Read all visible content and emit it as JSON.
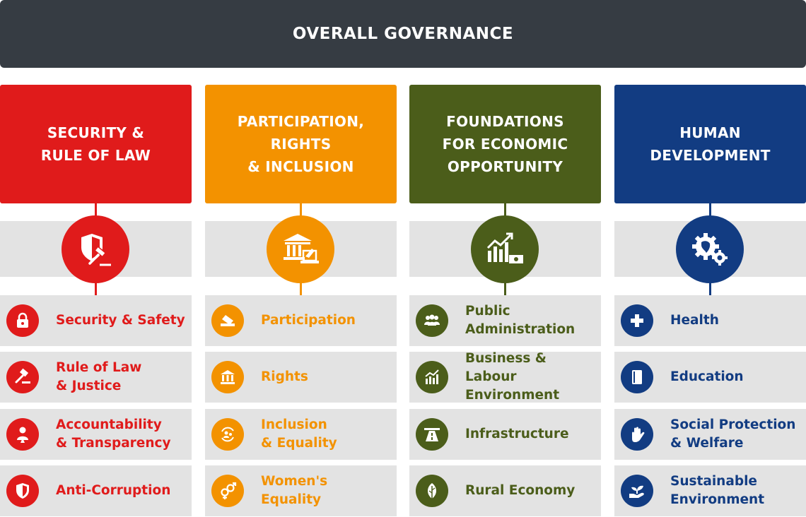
{
  "banner": {
    "title": "OVERALL GOVERNANCE"
  },
  "columns": [
    {
      "title": "SECURITY &\nRULE OF LAW",
      "color": "#e01b1b",
      "icon": "shield-gavel-icon",
      "items": [
        {
          "label": "Security & Safety",
          "icon": "padlock-icon"
        },
        {
          "label": "Rule of Law\n& Justice",
          "icon": "gavel-icon"
        },
        {
          "label": "Accountability\n& Transparency",
          "icon": "person-icon"
        },
        {
          "label": "Anti-Corruption",
          "icon": "shield-icon"
        }
      ]
    },
    {
      "title": "PARTICIPATION,\nRIGHTS\n& INCLUSION",
      "color": "#f39200",
      "icon": "institution-ballot-icon",
      "items": [
        {
          "label": "Participation",
          "icon": "ballot-icon"
        },
        {
          "label": "Rights",
          "icon": "institution-icon"
        },
        {
          "label": "Inclusion\n& Equality",
          "icon": "people-cycle-icon"
        },
        {
          "label": "Women's\nEquality",
          "icon": "gender-icon"
        }
      ]
    },
    {
      "title": "FOUNDATIONS\nFOR ECONOMIC\nOPPORTUNITY",
      "color": "#4b5d1a",
      "icon": "growth-chart-money-icon",
      "items": [
        {
          "label": "Public\nAdministration",
          "icon": "group-icon"
        },
        {
          "label": "Business & Labour\nEnvironment",
          "icon": "bar-chart-icon"
        },
        {
          "label": "Infrastructure",
          "icon": "road-icon"
        },
        {
          "label": "Rural Economy",
          "icon": "leaf-icon"
        }
      ]
    },
    {
      "title": "HUMAN\nDEVELOPMENT",
      "color": "#123c82",
      "icon": "gears-africa-icon",
      "items": [
        {
          "label": "Health",
          "icon": "cross-icon"
        },
        {
          "label": "Education",
          "icon": "book-icon"
        },
        {
          "label": "Social Protection\n& Welfare",
          "icon": "hand-icon"
        },
        {
          "label": "Sustainable\nEnvironment",
          "icon": "plant-hand-icon"
        }
      ]
    }
  ]
}
